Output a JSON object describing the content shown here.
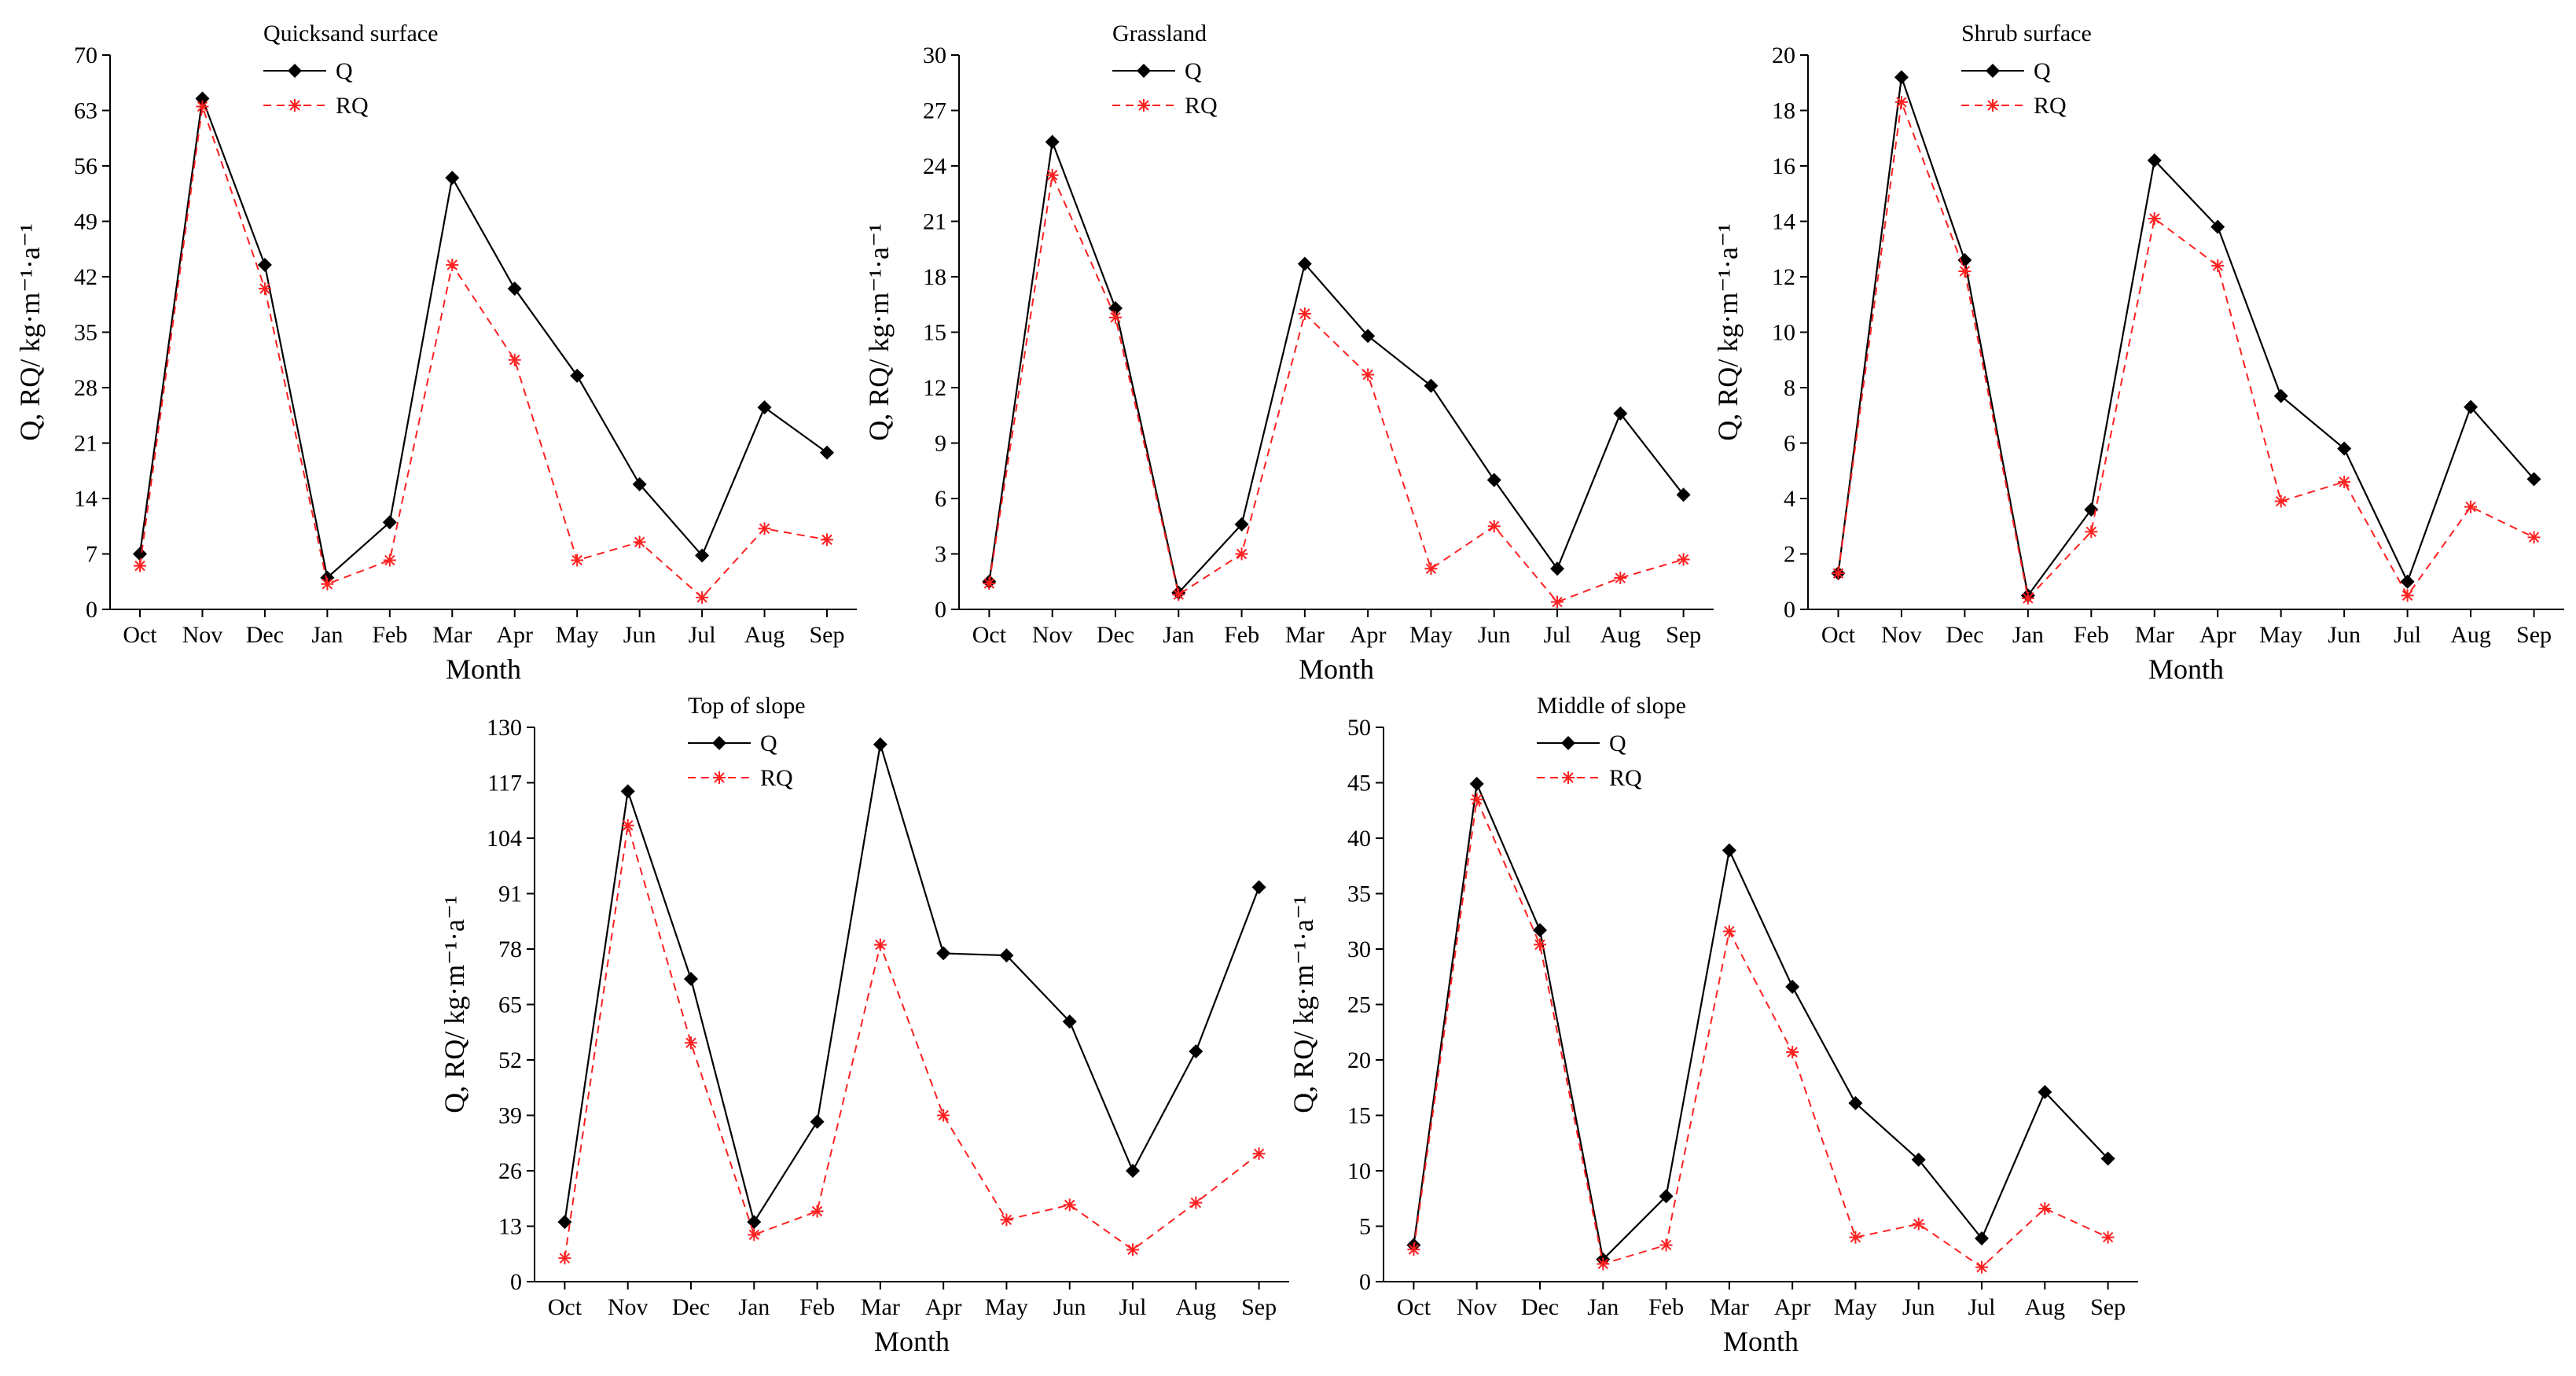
{
  "chart_data": [
    {
      "type": "line",
      "title": "Quicksand surface",
      "xlabel": "Month",
      "ylabel": "Q, RQ/ kg·m⁻¹·a⁻¹",
      "categories": [
        "Oct",
        "Nov",
        "Dec",
        "Jan",
        "Feb",
        "Mar",
        "Apr",
        "May",
        "Jun",
        "Jul",
        "Aug",
        "Sep"
      ],
      "ylim": [
        0,
        70
      ],
      "yticks": [
        0,
        7,
        14,
        21,
        28,
        35,
        42,
        49,
        56,
        63,
        70
      ],
      "legend": "top-left",
      "series": [
        {
          "name": "Q",
          "color": "#000000",
          "marker": "diamond",
          "dash": "solid",
          "values": [
            7,
            64.5,
            43.5,
            4,
            11,
            54.5,
            40.5,
            29.5,
            15.8,
            6.8,
            25.5,
            19.8
          ]
        },
        {
          "name": "RQ",
          "color": "#ff2020",
          "marker": "asterisk",
          "dash": "dashed",
          "values": [
            5.5,
            63.5,
            40.5,
            3.2,
            6.2,
            43.5,
            31.5,
            6.2,
            8.5,
            1.5,
            10.2,
            8.8
          ]
        }
      ]
    },
    {
      "type": "line",
      "title": "Grassland",
      "xlabel": "Month",
      "ylabel": "Q, RQ/ kg·m⁻¹·a⁻¹",
      "categories": [
        "Oct",
        "Nov",
        "Dec",
        "Jan",
        "Feb",
        "Mar",
        "Apr",
        "May",
        "Jun",
        "Jul",
        "Aug",
        "Sep"
      ],
      "ylim": [
        0,
        30
      ],
      "yticks": [
        0,
        3,
        6,
        9,
        12,
        15,
        18,
        21,
        24,
        27,
        30
      ],
      "legend": "top-left",
      "series": [
        {
          "name": "Q",
          "color": "#000000",
          "marker": "diamond",
          "dash": "solid",
          "values": [
            1.5,
            25.3,
            16.3,
            0.9,
            4.6,
            18.7,
            14.8,
            12.1,
            7.0,
            2.2,
            10.6,
            6.2
          ]
        },
        {
          "name": "RQ",
          "color": "#ff2020",
          "marker": "asterisk",
          "dash": "dashed",
          "values": [
            1.4,
            23.5,
            15.8,
            0.8,
            3.0,
            16.0,
            12.7,
            2.2,
            4.5,
            0.4,
            1.7,
            2.7
          ]
        }
      ]
    },
    {
      "type": "line",
      "title": "Shrub surface",
      "xlabel": "Month",
      "ylabel": "Q, RQ/ kg·m⁻¹·a⁻¹",
      "categories": [
        "Oct",
        "Nov",
        "Dec",
        "Jan",
        "Feb",
        "Mar",
        "Apr",
        "May",
        "Jun",
        "Jul",
        "Aug",
        "Sep"
      ],
      "ylim": [
        0,
        20
      ],
      "yticks": [
        0,
        2,
        4,
        6,
        8,
        10,
        12,
        14,
        16,
        18,
        20
      ],
      "legend": "top-left",
      "series": [
        {
          "name": "Q",
          "color": "#000000",
          "marker": "diamond",
          "dash": "solid",
          "values": [
            1.3,
            19.2,
            12.6,
            0.5,
            3.6,
            16.2,
            13.8,
            7.7,
            5.8,
            1.0,
            7.3,
            4.7
          ]
        },
        {
          "name": "RQ",
          "color": "#ff2020",
          "marker": "asterisk",
          "dash": "dashed",
          "values": [
            1.3,
            18.3,
            12.2,
            0.4,
            2.8,
            14.1,
            12.4,
            3.9,
            4.6,
            0.5,
            3.7,
            2.6
          ]
        }
      ]
    },
    {
      "type": "line",
      "title": "Top of slope",
      "xlabel": "Month",
      "ylabel": "Q, RQ/ kg·m⁻¹·a⁻¹",
      "categories": [
        "Oct",
        "Nov",
        "Dec",
        "Jan",
        "Feb",
        "Mar",
        "Apr",
        "May",
        "Jun",
        "Jul",
        "Aug",
        "Sep"
      ],
      "ylim": [
        0,
        130
      ],
      "yticks": [
        0,
        13,
        26,
        39,
        52,
        65,
        78,
        91,
        104,
        117,
        130
      ],
      "legend": "top-left",
      "series": [
        {
          "name": "Q",
          "color": "#000000",
          "marker": "diamond",
          "dash": "solid",
          "values": [
            14,
            115,
            71,
            14,
            37.5,
            126,
            77,
            76.5,
            61,
            26,
            54,
            92.5
          ]
        },
        {
          "name": "RQ",
          "color": "#ff2020",
          "marker": "asterisk",
          "dash": "dashed",
          "values": [
            5.5,
            107,
            56,
            11,
            16.5,
            79,
            39,
            14.5,
            18,
            7.5,
            18.5,
            30
          ]
        }
      ]
    },
    {
      "type": "line",
      "title": "Middle of slope",
      "xlabel": "Month",
      "ylabel": "Q, RQ/ kg·m⁻¹·a⁻¹",
      "categories": [
        "Oct",
        "Nov",
        "Dec",
        "Jan",
        "Feb",
        "Mar",
        "Apr",
        "May",
        "Jun",
        "Jul",
        "Aug",
        "Sep"
      ],
      "ylim": [
        0,
        50
      ],
      "yticks": [
        0,
        5,
        10,
        15,
        20,
        25,
        30,
        35,
        40,
        45,
        50
      ],
      "legend": "top-left",
      "series": [
        {
          "name": "Q",
          "color": "#000000",
          "marker": "diamond",
          "dash": "solid",
          "values": [
            3.3,
            44.9,
            31.7,
            2.0,
            7.7,
            38.9,
            26.6,
            16.1,
            11.0,
            3.9,
            17.1,
            11.1
          ]
        },
        {
          "name": "RQ",
          "color": "#ff2020",
          "marker": "asterisk",
          "dash": "dashed",
          "values": [
            2.9,
            43.5,
            30.4,
            1.6,
            3.3,
            31.6,
            20.7,
            4.0,
            5.2,
            1.3,
            6.6,
            4.0
          ]
        }
      ]
    }
  ]
}
